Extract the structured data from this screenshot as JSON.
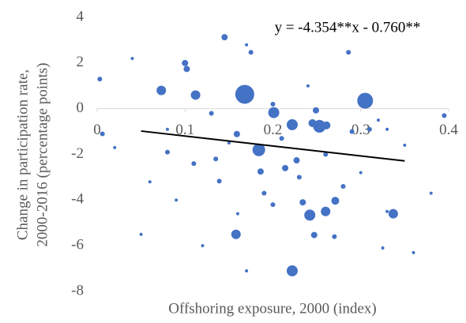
{
  "chart_data": {
    "type": "bubble",
    "annotation": "y = -4.354**x - 0.760**",
    "x_label": "Offshoring exposure, 2000  (index)",
    "y_label": [
      "Change in participation rate,",
      "2000-2016  (percentage points)"
    ],
    "xlim": [
      0,
      0.4
    ],
    "xticks": [
      0,
      0.1,
      0.2,
      0.3,
      0.4
    ],
    "ylim": [
      -8,
      4
    ],
    "yticks": [
      4,
      2,
      0,
      -2,
      -4,
      -6,
      -8
    ],
    "grid": false,
    "series": [
      {
        "color": "#4472c4",
        "x": [
          0.168,
          0.305,
          0.184,
          0.253,
          0.201,
          0.222,
          0.242,
          0.222,
          0.158,
          0.337,
          0.073,
          0.112,
          0.102,
          0.1,
          0.145,
          0.271,
          0.26,
          0.175,
          0.286,
          0.247,
          0.234,
          0.261,
          0.245,
          0.249,
          0.214,
          0.227,
          0.139,
          0.159,
          0.186,
          0.003,
          0.006,
          0.04,
          0.08,
          0.11,
          0.13,
          0.15,
          0.17,
          0.19,
          0.2,
          0.21,
          0.23,
          0.24,
          0.26,
          0.28,
          0.29,
          0.3,
          0.31,
          0.32,
          0.33,
          0.35,
          0.38,
          0.395,
          0.05,
          0.06,
          0.09,
          0.12,
          0.135,
          0.16,
          0.27,
          0.325,
          0.17,
          0.2,
          0.33,
          0.36,
          0.02,
          0.08
        ],
        "y": [
          0.63,
          0.35,
          -1.8,
          -0.77,
          -0.17,
          -0.7,
          -4.66,
          -7.1,
          -5.5,
          -4.6,
          0.8,
          0.6,
          1.74,
          2.0,
          3.13,
          -4.03,
          -4.5,
          2.47,
          2.47,
          -5.53,
          -4.1,
          -0.73,
          -0.63,
          -0.07,
          -2.6,
          -2.26,
          -3.17,
          -1.11,
          -2.75,
          1.3,
          -1.1,
          2.2,
          -1.9,
          -2.4,
          -0.2,
          -1.5,
          2.8,
          -3.7,
          -4.2,
          -1.3,
          -3.0,
          1.0,
          -2.0,
          -3.4,
          -1.0,
          -2.8,
          -0.9,
          -0.5,
          -0.9,
          -1.6,
          -3.7,
          -0.3,
          -5.5,
          -3.2,
          -4.0,
          -6.0,
          -2.2,
          -4.6,
          -5.6,
          -6.1,
          -7.1,
          0.2,
          -4.5,
          -6.3,
          -1.7,
          -0.9
        ],
        "size": [
          12,
          10,
          8,
          8,
          7,
          7,
          7,
          7,
          6,
          6,
          6,
          6,
          4,
          4,
          4,
          5,
          6,
          3,
          3,
          4,
          4,
          5,
          5,
          4,
          4,
          4,
          3,
          4,
          4,
          3,
          3,
          2,
          3,
          3,
          3,
          2,
          2,
          3,
          3,
          3,
          3,
          2,
          3,
          3,
          3,
          2,
          3,
          2,
          2,
          2,
          2,
          3,
          2,
          2,
          2,
          2,
          3,
          2,
          3,
          2,
          2,
          3,
          2,
          2,
          2,
          2
        ]
      }
    ],
    "trendline": {
      "slope": -4.354,
      "intercept": -0.76,
      "x": [
        0.05,
        0.35
      ],
      "color": "#000000"
    }
  }
}
